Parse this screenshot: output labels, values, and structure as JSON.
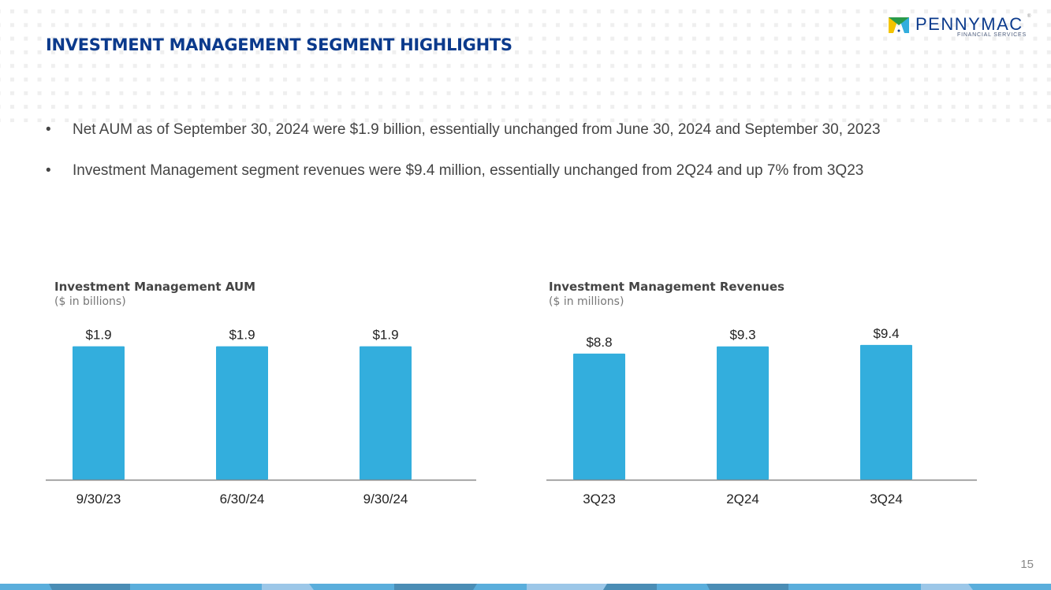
{
  "header": {
    "title": "INVESTMENT MANAGEMENT SEGMENT HIGHLIGHTS",
    "logo": {
      "name": "PENNYMAC",
      "tagline": "FINANCIAL SERVICES",
      "trademark": "®"
    }
  },
  "bullets": [
    "Net AUM as of September 30, 2024 were $1.9 billion, essentially unchanged from June 30, 2024 and September 30, 2023",
    "Investment Management segment revenues were $9.4 million, essentially unchanged from 2Q24 and up 7% from 3Q23"
  ],
  "bullet_symbol": "•",
  "colors": {
    "bar": "#33aedd",
    "title": "#0b3a8c",
    "axis": "#888888"
  },
  "chart_data": [
    {
      "type": "bar",
      "title": "Investment Management AUM",
      "subtitle": "($ in billions)",
      "categories": [
        "9/30/23",
        "6/30/24",
        "9/30/24"
      ],
      "values": [
        1.9,
        1.9,
        1.9
      ],
      "labels": [
        "$1.9",
        "$1.9",
        "$1.9"
      ],
      "ylim": [
        0,
        2.1
      ],
      "grid": false
    },
    {
      "type": "bar",
      "title": "Investment Management Revenues",
      "subtitle": "($ in millions)",
      "categories": [
        "3Q23",
        "2Q24",
        "3Q24"
      ],
      "values": [
        8.8,
        9.3,
        9.4
      ],
      "labels": [
        "$8.8",
        "$9.3",
        "$9.4"
      ],
      "ylim": [
        0,
        10.5
      ],
      "grid": false
    }
  ],
  "page_number": "15"
}
